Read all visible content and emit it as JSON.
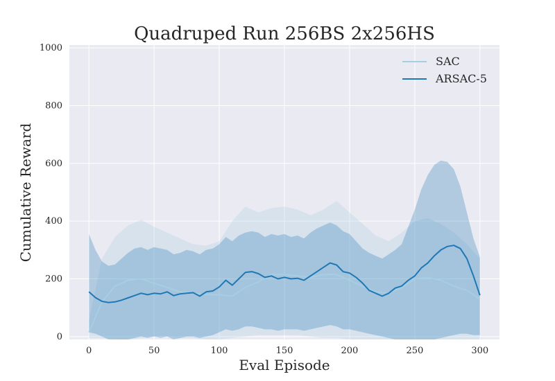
{
  "chart_data": {
    "type": "line",
    "title": "Quadruped Run 256BS 2x256HS",
    "xlabel": "Eval Episode",
    "ylabel": "Cumulative Reward",
    "xlim": [
      -15,
      315
    ],
    "ylim": [
      -10,
      1010
    ],
    "xticks": [
      0,
      50,
      100,
      150,
      200,
      250,
      300
    ],
    "yticks": [
      0,
      200,
      400,
      600,
      800,
      1000
    ],
    "grid": true,
    "legend_position": "top-right",
    "colors": {
      "background": "#eaeaf2",
      "grid": "#ffffff",
      "SAC": "#a6cee3",
      "ARSAC-5": "#1f78b4"
    },
    "series": [
      {
        "name": "SAC",
        "color": "#a6cee3",
        "x": [
          0,
          10,
          20,
          30,
          40,
          50,
          60,
          70,
          80,
          90,
          100,
          110,
          120,
          130,
          140,
          150,
          160,
          170,
          180,
          190,
          200,
          210,
          220,
          230,
          240,
          250,
          260,
          270,
          280,
          290,
          300
        ],
        "mean": [
          15,
          120,
          175,
          195,
          200,
          185,
          170,
          155,
          150,
          145,
          145,
          140,
          170,
          190,
          215,
          215,
          210,
          205,
          215,
          215,
          195,
          175,
          155,
          150,
          170,
          200,
          205,
          195,
          175,
          160,
          130
        ],
        "upper": [
          55,
          270,
          345,
          385,
          405,
          380,
          360,
          340,
          320,
          315,
          330,
          400,
          450,
          430,
          445,
          450,
          440,
          420,
          440,
          470,
          430,
          390,
          350,
          330,
          360,
          400,
          410,
          390,
          360,
          320,
          270
        ],
        "lower": [
          -5,
          -5,
          -10,
          -10,
          -5,
          0,
          0,
          -5,
          -5,
          -10,
          -10,
          -5,
          0,
          5,
          5,
          5,
          5,
          0,
          -5,
          -5,
          -10,
          -15,
          -15,
          -15,
          -10,
          -10,
          -10,
          -10,
          -10,
          -10,
          -10
        ]
      },
      {
        "name": "ARSAC-5",
        "color": "#1f78b4",
        "x": [
          0,
          5,
          10,
          15,
          20,
          25,
          30,
          35,
          40,
          45,
          50,
          55,
          60,
          65,
          70,
          75,
          80,
          85,
          90,
          95,
          100,
          105,
          110,
          115,
          120,
          125,
          130,
          135,
          140,
          145,
          150,
          155,
          160,
          165,
          170,
          175,
          180,
          185,
          190,
          195,
          200,
          205,
          210,
          215,
          220,
          225,
          230,
          235,
          240,
          245,
          250,
          255,
          260,
          265,
          270,
          275,
          280,
          285,
          290,
          295,
          300
        ],
        "mean": [
          155,
          135,
          122,
          118,
          120,
          126,
          134,
          142,
          150,
          145,
          150,
          148,
          155,
          142,
          148,
          150,
          152,
          140,
          155,
          158,
          172,
          195,
          178,
          200,
          222,
          225,
          218,
          205,
          210,
          200,
          205,
          200,
          202,
          195,
          210,
          225,
          240,
          255,
          248,
          225,
          220,
          205,
          185,
          160,
          150,
          140,
          150,
          168,
          175,
          195,
          210,
          238,
          255,
          280,
          300,
          312,
          316,
          305,
          270,
          210,
          143
        ],
        "upper": [
          355,
          300,
          260,
          245,
          250,
          270,
          290,
          305,
          310,
          300,
          310,
          305,
          300,
          285,
          290,
          300,
          295,
          285,
          300,
          305,
          320,
          345,
          330,
          350,
          360,
          365,
          360,
          345,
          355,
          350,
          355,
          345,
          350,
          340,
          360,
          375,
          385,
          395,
          385,
          365,
          355,
          330,
          305,
          290,
          280,
          270,
          285,
          300,
          320,
          380,
          440,
          510,
          560,
          595,
          610,
          605,
          580,
          520,
          430,
          340,
          275
        ],
        "lower": [
          15,
          10,
          0,
          -10,
          -15,
          -15,
          -10,
          -5,
          0,
          -5,
          0,
          -5,
          0,
          -10,
          -5,
          0,
          0,
          -5,
          0,
          5,
          15,
          25,
          20,
          25,
          35,
          35,
          30,
          25,
          25,
          20,
          25,
          25,
          25,
          20,
          25,
          30,
          35,
          40,
          35,
          25,
          25,
          20,
          15,
          10,
          5,
          0,
          -5,
          -10,
          -15,
          -20,
          -20,
          -20,
          -15,
          -10,
          -5,
          0,
          5,
          10,
          10,
          5,
          5
        ]
      }
    ]
  }
}
